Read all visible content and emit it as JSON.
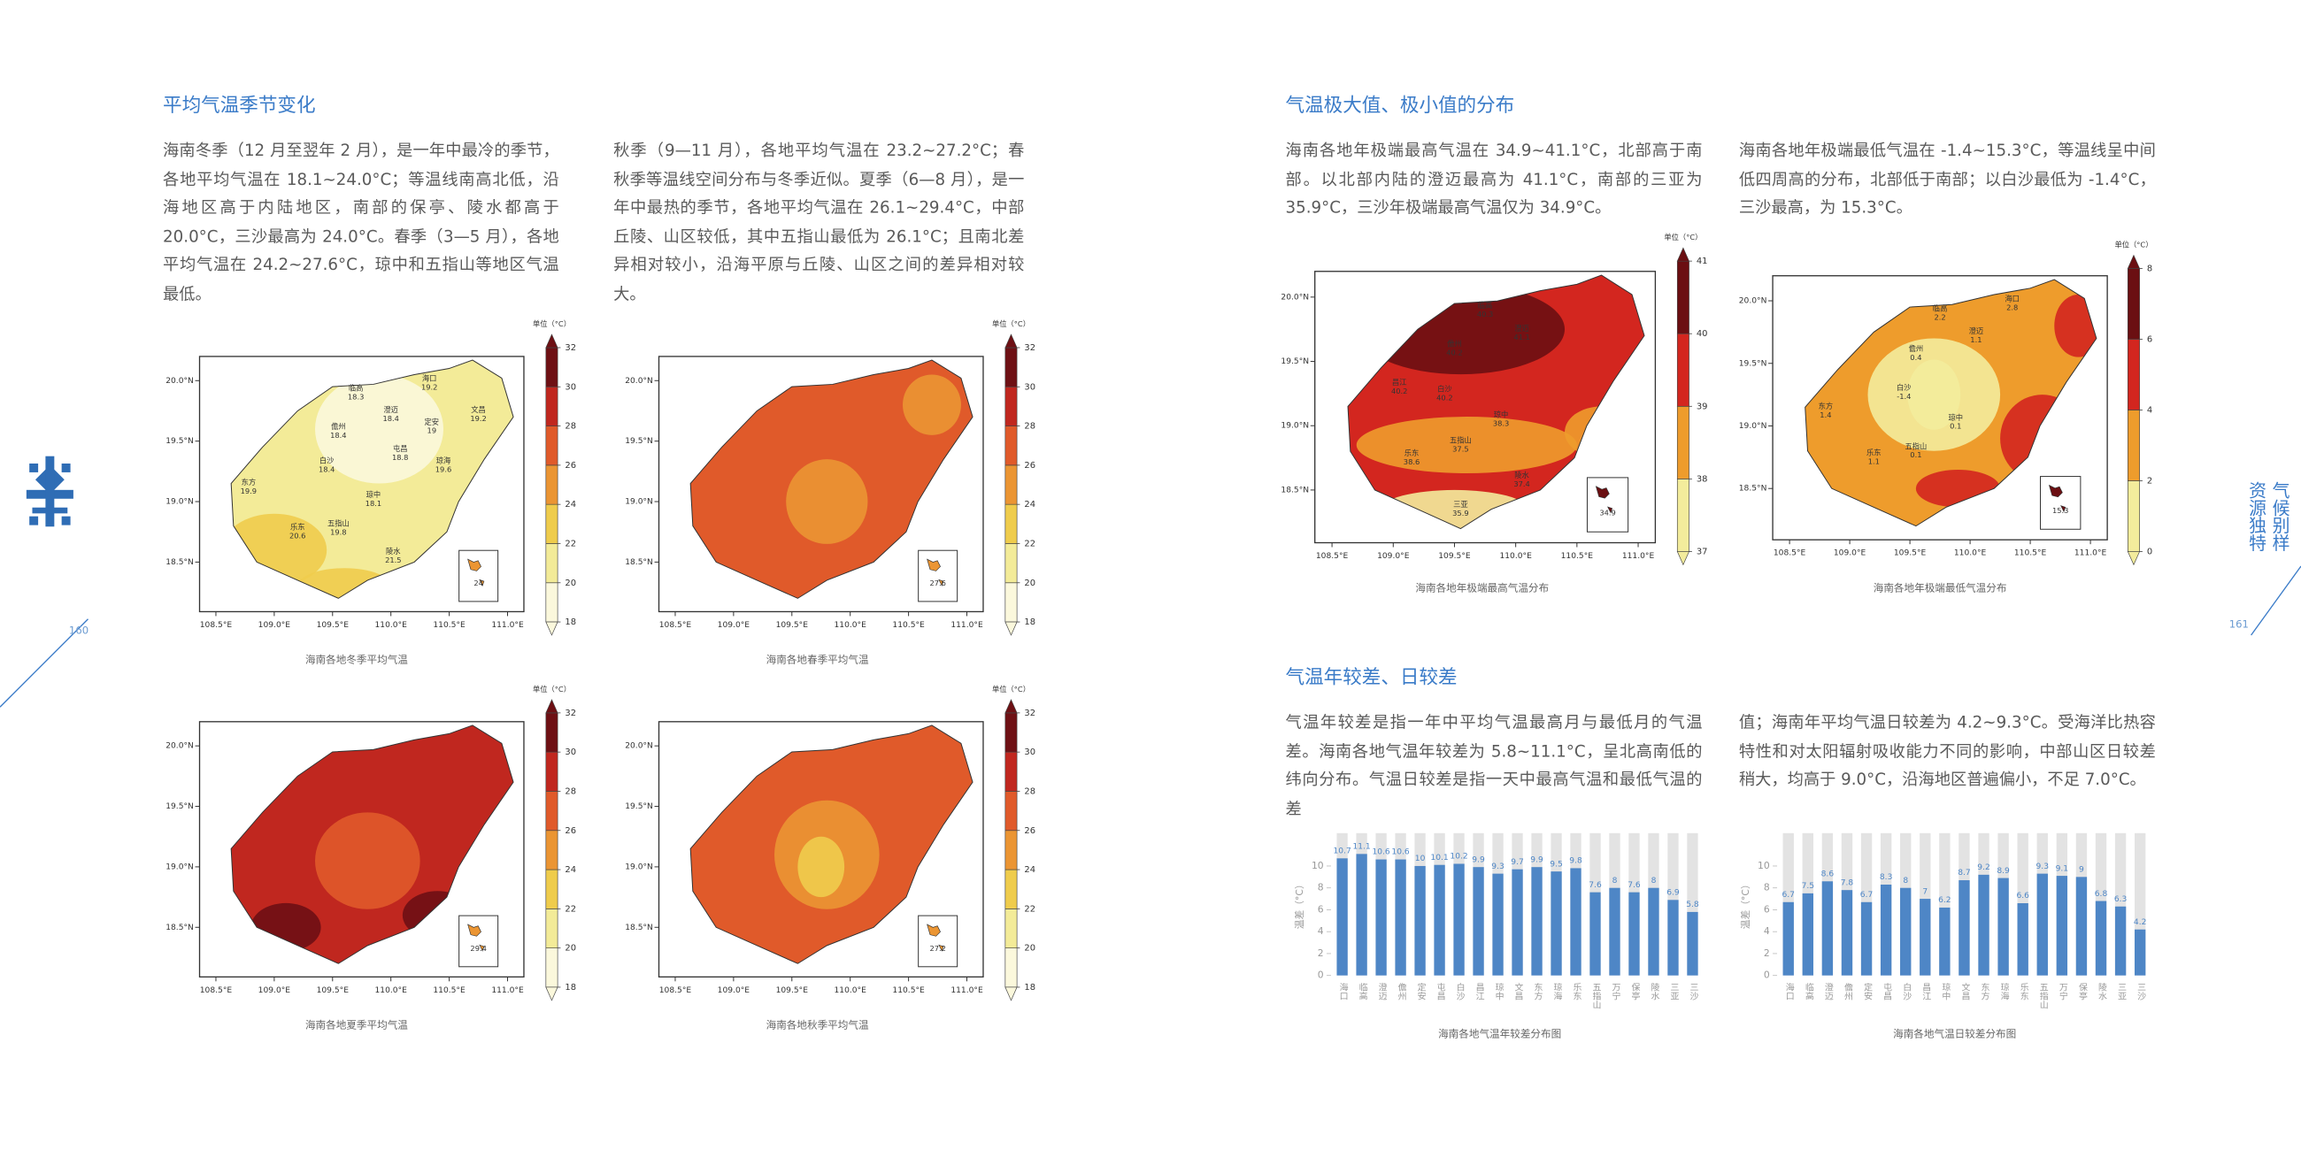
{
  "left_page": {
    "heading": "平均气温季节变化",
    "paragraphs": [
      "海南冬季（12 月至翌年 2 月），是一年中最冷的季节，各地平均气温在 18.1~24.0°C；等温线南高北低，沿海地区高于内陆地区，南部的保亭、陵水都高于 20.0°C，三沙最高为 24.0°C。春季（3—5 月），各地平均气温在 24.2~27.6°C，琼中和五指山等地区气温最低。",
      "秋季（9—11 月），各地平均气温在 23.2~27.2°C；春秋季等温线空间分布与冬季近似。夏季（6—8 月），是一年中最热的季节，各地平均气温在 26.1~29.4°C，中部丘陵、山区较低，其中五指山最低为 26.1°C；且南北差异相对较小，沿海平原与丘陵、山区之间的差异相对较大。"
    ],
    "page_number": "160"
  },
  "right_page": {
    "side_title": [
      "气候别样",
      "资源独特"
    ],
    "sections": [
      {
        "heading": "气温极大值、极小值的分布",
        "paragraphs": [
          "海南各地年极端最高气温在 34.9~41.1°C，北部高于南部。以北部内陆的澄迈最高为 41.1°C，南部的三亚为 35.9°C，三沙年极端最高气温仅为 34.9°C。",
          "海南各地年极端最低气温在 -1.4~15.3°C，等温线呈中间低四周高的分布，北部低于南部；以白沙最低为 -1.4°C，三沙最高，为 15.3°C。"
        ]
      },
      {
        "heading": "气温年较差、日较差",
        "paragraphs": [
          "气温年较差是指一年中平均气温最高月与最低月的气温差。海南各地气温年较差为 5.8~11.1°C，呈北高南低的纬向分布。气温日较差是指一天中最高气温和最低气温的差",
          "值；海南年平均气温日较差为 4.2~9.3°C。受海洋比热容特性和对太阳辐射吸收能力不同的影响，中部山区日较差稍大，均高于 9.0°C，沿海地区普遍偏小，不足 7.0°C。"
        ]
      }
    ],
    "page_number": "161"
  },
  "map_axes": {
    "lon_ticks": [
      {
        "value": 108.5,
        "label": "108.5°E"
      },
      {
        "value": 109.0,
        "label": "109.0°E"
      },
      {
        "value": 109.5,
        "label": "109.5°E"
      },
      {
        "value": 110.0,
        "label": "110.0°E"
      },
      {
        "value": 110.5,
        "label": "110.5°E"
      },
      {
        "value": 111.0,
        "label": "111.0°E"
      }
    ],
    "lat_ticks": [
      {
        "value": 18.5,
        "label": "18.5°N"
      },
      {
        "value": 19.0,
        "label": "19.0°N"
      },
      {
        "value": 19.5,
        "label": "19.5°N"
      },
      {
        "value": 20.0,
        "label": "20.0°N"
      }
    ]
  },
  "maps": [
    {
      "caption": "海南各地冬季平均气温",
      "unit": "单位（°C）",
      "colorbar": {
        "ticks": [
          18,
          20,
          22,
          24,
          26,
          28,
          30,
          32
        ],
        "colors": [
          "#fbf8dc",
          "#f3eb98",
          "#efcc4c",
          "#eb9533",
          "#e05a2a",
          "#c0271f",
          "#6e1014"
        ]
      },
      "stations": [
        {
          "name": "海口",
          "value": 19.2
        },
        {
          "name": "文昌",
          "value": 19.2
        },
        {
          "name": "临高",
          "value": 18.3
        },
        {
          "name": "澄迈",
          "value": 18.4
        },
        {
          "name": "儋州",
          "value": 18.4
        },
        {
          "name": "定安",
          "value": 19.0
        },
        {
          "name": "白沙",
          "value": 18.4
        },
        {
          "name": "屯昌",
          "value": 18.8
        },
        {
          "name": "琼海",
          "value": 19.6
        },
        {
          "name": "东方",
          "value": 19.9
        },
        {
          "name": "琼中",
          "value": 18.1
        },
        {
          "name": "乐东",
          "value": 20.6
        },
        {
          "name": "五指山",
          "value": 19.8
        },
        {
          "name": "陵水",
          "value": 21.5
        }
      ],
      "inset_value": 24.0
    },
    {
      "caption": "海南各地春季平均气温",
      "unit": "单位（°C）",
      "colorbar": {
        "ticks": [
          18,
          20,
          22,
          24,
          26,
          28,
          30,
          32
        ],
        "colors": [
          "#fbf8dc",
          "#f3eb98",
          "#efcc4c",
          "#eb9533",
          "#e05a2a",
          "#c0271f",
          "#6e1014"
        ]
      },
      "stations": [],
      "inset_value": 27.6
    },
    {
      "caption": "海南各地夏季平均气温",
      "unit": "单位（°C）",
      "colorbar": {
        "ticks": [
          18,
          20,
          22,
          24,
          26,
          28,
          30,
          32
        ],
        "colors": [
          "#fbf8dc",
          "#f3eb98",
          "#efcc4c",
          "#eb9533",
          "#e05a2a",
          "#c0271f",
          "#6e1014"
        ]
      },
      "stations": [],
      "inset_value": 29.4
    },
    {
      "caption": "海南各地秋季平均气温",
      "unit": "单位（°C）",
      "colorbar": {
        "ticks": [
          18,
          20,
          22,
          24,
          26,
          28,
          30,
          32
        ],
        "colors": [
          "#fbf8dc",
          "#f3eb98",
          "#efcc4c",
          "#eb9533",
          "#e05a2a",
          "#c0271f",
          "#6e1014"
        ]
      },
      "stations": [],
      "inset_value": 27.2
    },
    {
      "caption": "海南各地年极端最高气温分布",
      "unit": "单位（°C）",
      "colorbar": {
        "ticks": [
          37,
          38,
          39,
          40,
          41
        ],
        "colors": [
          "#f3ec9c",
          "#ee9c2c",
          "#d3261f",
          "#6b0f12"
        ]
      },
      "stations": [
        {
          "name": "临高",
          "value": 40.3
        },
        {
          "name": "澄迈",
          "value": 41.1
        },
        {
          "name": "儋州",
          "value": 40.2
        },
        {
          "name": "昌江",
          "value": 40.2
        },
        {
          "name": "白沙",
          "value": 40.2
        },
        {
          "name": "琼中",
          "value": 38.3
        },
        {
          "name": "乐东",
          "value": 38.6
        },
        {
          "name": "五指山",
          "value": 37.5
        },
        {
          "name": "陵水",
          "value": 37.4
        },
        {
          "name": "三亚",
          "value": 35.9
        }
      ],
      "inset_value": 34.9
    },
    {
      "caption": "海南各地年极端最低气温分布",
      "unit": "单位（°C）",
      "colorbar": {
        "ticks": [
          0,
          2,
          4,
          6,
          8
        ],
        "colors": [
          "#f3ec9c",
          "#ee9c2c",
          "#d3261f",
          "#6b0f12"
        ]
      },
      "stations": [
        {
          "name": "海口",
          "value": 2.8
        },
        {
          "name": "临高",
          "value": 2.2
        },
        {
          "name": "澄迈",
          "value": 1.1
        },
        {
          "name": "儋州",
          "value": 0.4
        },
        {
          "name": "白沙",
          "value": -1.4
        },
        {
          "name": "东方",
          "value": 1.4
        },
        {
          "name": "琼中",
          "value": 0.1
        },
        {
          "name": "乐东",
          "value": 1.1
        },
        {
          "name": "五指山",
          "value": 0.1
        }
      ],
      "inset_value": 15.3
    }
  ],
  "bar_charts": [
    {
      "type": "bar",
      "caption": "海南各地气温年较差分布图",
      "y_label": "温差（°C）",
      "categories": [
        "海口",
        "临高",
        "澄迈",
        "儋州",
        "定安",
        "屯昌",
        "白沙",
        "昌江",
        "琼中",
        "文昌",
        "东方",
        "琼海",
        "乐东",
        "五指山",
        "万宁",
        "保亭",
        "陵水",
        "三亚",
        "三沙"
      ],
      "values": [
        10.7,
        11.1,
        10.6,
        10.6,
        10,
        10.1,
        10.2,
        9.9,
        9.3,
        9.7,
        9.9,
        9.5,
        9.8,
        7.6,
        8,
        7.6,
        8,
        6.9,
        5.8
      ],
      "color": "#4e86c6",
      "ylim": [
        0,
        13
      ],
      "yticks": [
        0,
        2,
        4,
        6,
        8,
        10
      ]
    },
    {
      "type": "bar",
      "caption": "海南各地气温日较差分布图",
      "y_label": "温差（°C）",
      "categories": [
        "海口",
        "临高",
        "澄迈",
        "儋州",
        "定安",
        "屯昌",
        "白沙",
        "昌江",
        "琼中",
        "文昌",
        "东方",
        "琼海",
        "乐东",
        "五指山",
        "万宁",
        "保亭",
        "陵水",
        "三亚",
        "三沙"
      ],
      "values": [
        6.7,
        7.5,
        8.6,
        7.8,
        6.7,
        8.3,
        8,
        7,
        6.2,
        8.7,
        9.2,
        8.9,
        6.6,
        9.3,
        9.1,
        9,
        6.8,
        6.3,
        4.2
      ],
      "color": "#4e86c6",
      "ylim": [
        0,
        13
      ],
      "yticks": [
        0,
        2,
        4,
        6,
        8,
        10
      ]
    }
  ]
}
